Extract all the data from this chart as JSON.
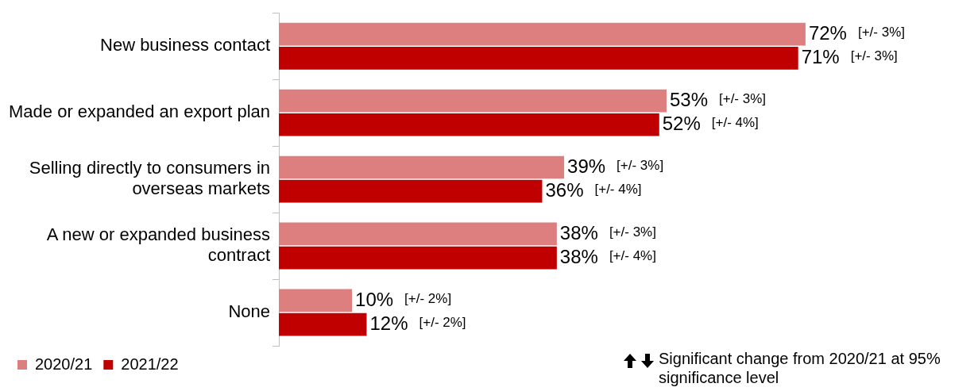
{
  "chart_data": {
    "type": "bar",
    "orientation": "horizontal",
    "categories": [
      "New business contact",
      "Made or expanded an export plan",
      "Selling directly to consumers in overseas markets",
      "A new or expanded business contract",
      "None"
    ],
    "series": [
      {
        "name": "2020/21",
        "color": "#de7f7f",
        "values": [
          72,
          53,
          39,
          38,
          10
        ],
        "value_labels": [
          "72%",
          "53%",
          "39%",
          "38%",
          "10%"
        ]
      },
      {
        "name": "2021/22",
        "color": "#c00000",
        "values": [
          71,
          52,
          36,
          38,
          12
        ],
        "value_labels": [
          "71%",
          "52%",
          "36%",
          "38%",
          "12%"
        ]
      }
    ],
    "annotations": [
      "[+/- 3%]",
      "[+/- 3%]",
      "[+/- 3%]",
      "[+/- 4%]",
      "[+/- 3%]",
      "[+/- 4%]",
      "[+/- 3%]",
      "[+/- 4%]",
      "[+/- 2%]",
      "[+/- 2%]",
      "Significant change from 2020/21 at 95% significance level"
    ],
    "legend": "bottom",
    "grid": false
  }
}
